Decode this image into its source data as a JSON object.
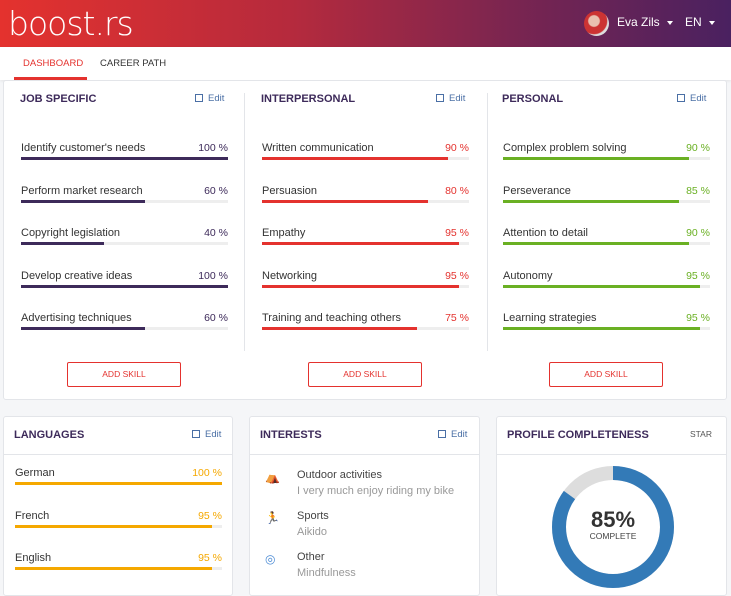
{
  "header": {
    "logo": "boost.rs",
    "user": "Eva Zils",
    "language": "EN"
  },
  "nav": {
    "tabs": [
      {
        "label": "DASHBOARD",
        "active": true
      },
      {
        "label": "CAREER PATH",
        "active": false
      }
    ]
  },
  "edit_label": "Edit",
  "skills": {
    "add_label": "ADD SKILL",
    "columns": [
      {
        "title": "JOB SPECIFIC",
        "color": "#3d2a5a",
        "items": [
          {
            "name": "Identify customer's needs",
            "value": 100,
            "label": "100 %"
          },
          {
            "name": "Perform market research",
            "value": 60,
            "label": "60 %"
          },
          {
            "name": "Copyright legislation",
            "value": 40,
            "label": "40 %"
          },
          {
            "name": "Develop creative ideas",
            "value": 100,
            "label": "100 %"
          },
          {
            "name": "Advertising techniques",
            "value": 60,
            "label": "60 %"
          }
        ]
      },
      {
        "title": "INTERPERSONAL",
        "color": "#e4322e",
        "items": [
          {
            "name": "Written communication",
            "value": 90,
            "label": "90 %"
          },
          {
            "name": "Persuasion",
            "value": 80,
            "label": "80 %"
          },
          {
            "name": "Empathy",
            "value": 95,
            "label": "95 %"
          },
          {
            "name": "Networking",
            "value": 95,
            "label": "95 %"
          },
          {
            "name": "Training and teaching others",
            "value": 75,
            "label": "75 %"
          }
        ]
      },
      {
        "title": "PERSONAL",
        "color": "#6ab023",
        "items": [
          {
            "name": "Complex problem solving",
            "value": 90,
            "label": "90 %"
          },
          {
            "name": "Perseverance",
            "value": 85,
            "label": "85 %"
          },
          {
            "name": "Attention to detail",
            "value": 90,
            "label": "90 %"
          },
          {
            "name": "Autonomy",
            "value": 95,
            "label": "95 %"
          },
          {
            "name": "Learning strategies",
            "value": 95,
            "label": "95 %"
          }
        ]
      }
    ]
  },
  "languages": {
    "title": "LANGUAGES",
    "color": "#f5a800",
    "items": [
      {
        "name": "German",
        "value": 100,
        "label": "100 %"
      },
      {
        "name": "French",
        "value": 95,
        "label": "95 %"
      },
      {
        "name": "English",
        "value": 95,
        "label": "95 %"
      }
    ]
  },
  "interests": {
    "title": "INTERESTS",
    "items": [
      {
        "icon": "tent-icon",
        "title": "Outdoor activities",
        "desc": "I very much enjoy riding my bike"
      },
      {
        "icon": "runner-icon",
        "title": "Sports",
        "desc": "Aikido"
      },
      {
        "icon": "globe-icon",
        "title": "Other",
        "desc": "Mindfulness"
      }
    ]
  },
  "profile": {
    "title": "PROFILE COMPLETENESS",
    "action": "STAR",
    "value": 85,
    "value_label": "85%",
    "sub": "COMPLETE",
    "color": "#337ab7",
    "track": "#dddddd"
  }
}
